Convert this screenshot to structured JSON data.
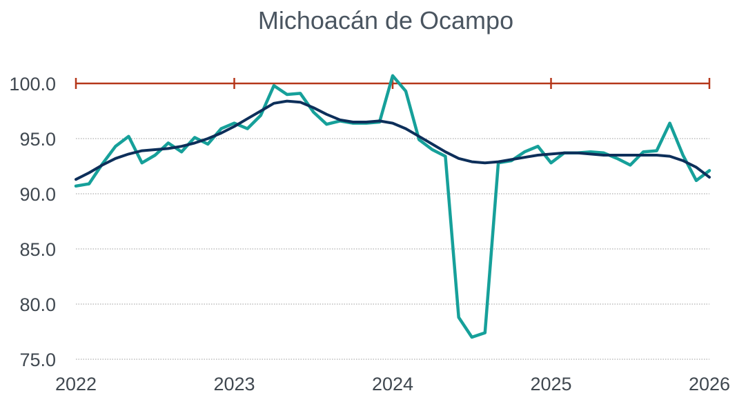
{
  "chart_data": {
    "type": "line",
    "title": "Michoacán de Ocampo",
    "xlabel": "",
    "ylabel": "",
    "xlim": [
      2022,
      2026
    ],
    "ylim": [
      75,
      100
    ],
    "x_ticks": [
      "2022",
      "2023",
      "2024",
      "2025",
      "2026"
    ],
    "y_ticks": [
      "75.0",
      "80.0",
      "85.0",
      "90.0",
      "95.0",
      "100.0"
    ],
    "grid": "horizontal dotted",
    "legend": "none",
    "colors": {
      "primary": "#16a09a",
      "trend": "#0d2f5a",
      "reference": "#b5371a",
      "grid": "#999999",
      "text": "#404850",
      "title": "#4a5560"
    },
    "reference_line": {
      "value": 100,
      "markers": [
        2022,
        2023,
        2024,
        2025,
        2026
      ]
    },
    "series": [
      {
        "style": "primary",
        "x": [
          2022.0,
          2022.083,
          2022.167,
          2022.25,
          2022.333,
          2022.417,
          2022.5,
          2022.583,
          2022.667,
          2022.75,
          2022.833,
          2022.917,
          2023.0,
          2023.083,
          2023.167,
          2023.25,
          2023.333,
          2023.417,
          2023.5,
          2023.583,
          2023.667,
          2023.75,
          2023.833,
          2023.917,
          2024.0,
          2024.083,
          2024.167,
          2024.25,
          2024.333,
          2024.417,
          2024.5,
          2024.583,
          2024.667,
          2024.75,
          2024.833,
          2024.917,
          2025.0,
          2025.083,
          2025.167,
          2025.25,
          2025.333,
          2025.417,
          2025.5,
          2025.583,
          2025.667,
          2025.75,
          2025.833,
          2025.917,
          2026.0
        ],
        "values": [
          90.7,
          90.9,
          92.7,
          94.3,
          95.2,
          92.8,
          93.5,
          94.6,
          93.8,
          95.1,
          94.5,
          95.9,
          96.4,
          95.9,
          97.1,
          99.8,
          99.0,
          99.1,
          97.4,
          96.3,
          96.6,
          96.4,
          96.4,
          96.5,
          100.7,
          99.3,
          94.9,
          94.0,
          93.4,
          78.8,
          77.0,
          77.4,
          92.8,
          93.0,
          93.8,
          94.3,
          92.8,
          93.7,
          93.7,
          93.8,
          93.7,
          93.2,
          92.6,
          93.8,
          93.9,
          96.4,
          93.5,
          91.2,
          92.1
        ]
      },
      {
        "style": "trend",
        "x": [
          2022.0,
          2022.083,
          2022.167,
          2022.25,
          2022.333,
          2022.417,
          2022.5,
          2022.583,
          2022.667,
          2022.75,
          2022.833,
          2022.917,
          2023.0,
          2023.083,
          2023.167,
          2023.25,
          2023.333,
          2023.417,
          2023.5,
          2023.583,
          2023.667,
          2023.75,
          2023.833,
          2023.917,
          2024.0,
          2024.083,
          2024.167,
          2024.25,
          2024.333,
          2024.417,
          2024.5,
          2024.583,
          2024.667,
          2024.75,
          2024.833,
          2024.917,
          2025.0,
          2025.083,
          2025.167,
          2025.25,
          2025.333,
          2025.417,
          2025.5,
          2025.583,
          2025.667,
          2025.75,
          2025.833,
          2025.917,
          2026.0
        ],
        "values": [
          91.3,
          91.9,
          92.6,
          93.2,
          93.6,
          93.9,
          94.0,
          94.1,
          94.3,
          94.6,
          95.0,
          95.5,
          96.1,
          96.8,
          97.5,
          98.2,
          98.4,
          98.3,
          97.8,
          97.2,
          96.7,
          96.5,
          96.5,
          96.6,
          96.4,
          95.9,
          95.2,
          94.5,
          93.8,
          93.2,
          92.9,
          92.8,
          92.9,
          93.1,
          93.3,
          93.5,
          93.6,
          93.7,
          93.7,
          93.6,
          93.5,
          93.5,
          93.5,
          93.5,
          93.5,
          93.4,
          93.0,
          92.4,
          91.5
        ]
      }
    ]
  }
}
